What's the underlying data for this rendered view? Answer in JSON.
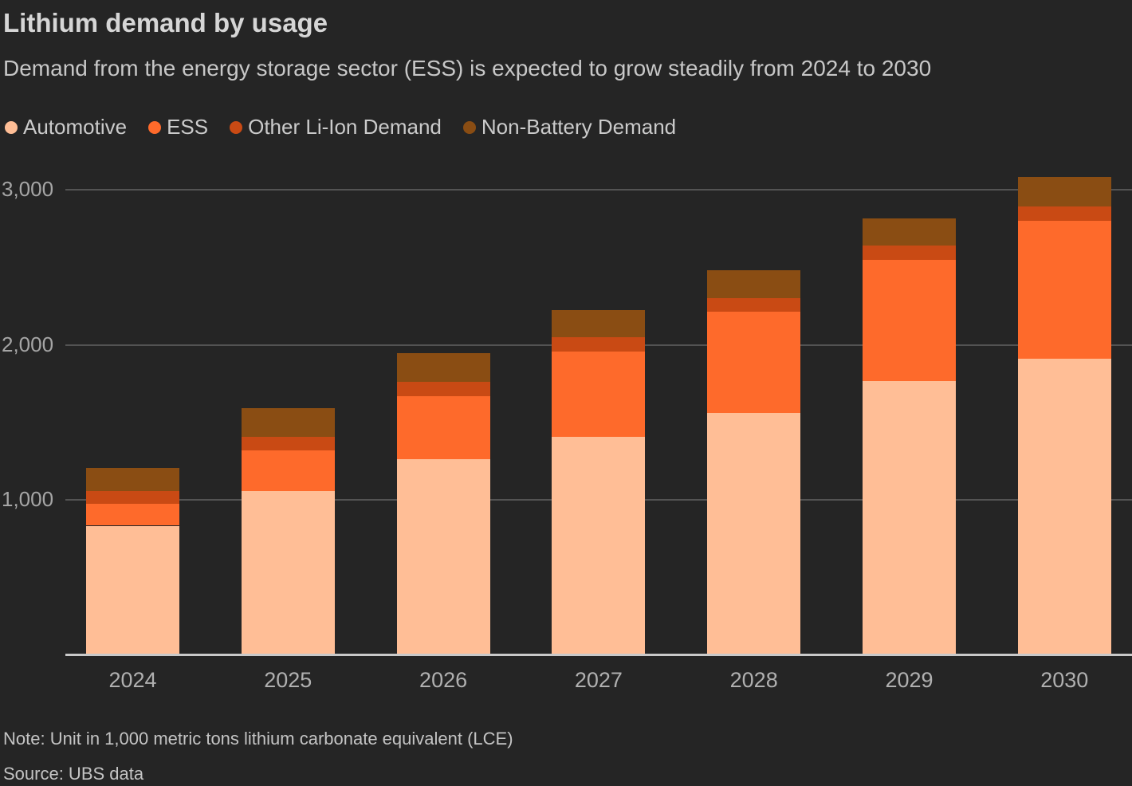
{
  "header": {
    "title": "Lithium demand by usage",
    "subtitle": "Demand from the energy storage sector (ESS) is expected to grow steadily from 2024 to 2030"
  },
  "footer": {
    "note": "Note: Unit in 1,000 metric tons lithium carbonate equivalent (LCE)",
    "source": "Source: UBS data"
  },
  "theme": {
    "background": "#252525",
    "gridline": "#535353",
    "axis_line": "#c9c9c9",
    "title_text": "#d6d6d6",
    "subtitle_text": "#c7c7c7",
    "tick_text": "#a5a5a5",
    "footer_text": "#c4c4c4"
  },
  "chart_data": {
    "type": "bar",
    "stacked": true,
    "title": "Lithium demand by usage",
    "subtitle": "Demand from the energy storage sector (ESS) is expected to grow steadily from 2024 to 2030",
    "xlabel": "",
    "ylabel": "",
    "ylim": [
      0,
      3200
    ],
    "grid": "horizontal",
    "legend_position": "top",
    "categories": [
      "2024",
      "2025",
      "2026",
      "2027",
      "2028",
      "2029",
      "2030"
    ],
    "series": [
      {
        "name": "Automotive",
        "color": "#ffbe96",
        "values": [
          835,
          1060,
          1265,
          1410,
          1560,
          1770,
          1910
        ]
      },
      {
        "name": "ESS",
        "color": "#fe6a2b",
        "values": [
          140,
          260,
          405,
          550,
          655,
          780,
          890
        ]
      },
      {
        "name": "Other Li-Ion Demand",
        "color": "#c94a14",
        "values": [
          85,
          90,
          95,
          90,
          85,
          90,
          95
        ]
      },
      {
        "name": "Non-Battery Demand",
        "color": "#8a4d13",
        "values": [
          150,
          185,
          185,
          175,
          180,
          175,
          190
        ]
      }
    ],
    "totals": [
      1210,
      1595,
      1950,
      2225,
      2480,
      2815,
      3085
    ],
    "y_ticks": [
      {
        "value": 1000,
        "label": "1,000"
      },
      {
        "value": 2000,
        "label": "2,000"
      },
      {
        "value": 3000,
        "label": "3,000"
      }
    ]
  }
}
